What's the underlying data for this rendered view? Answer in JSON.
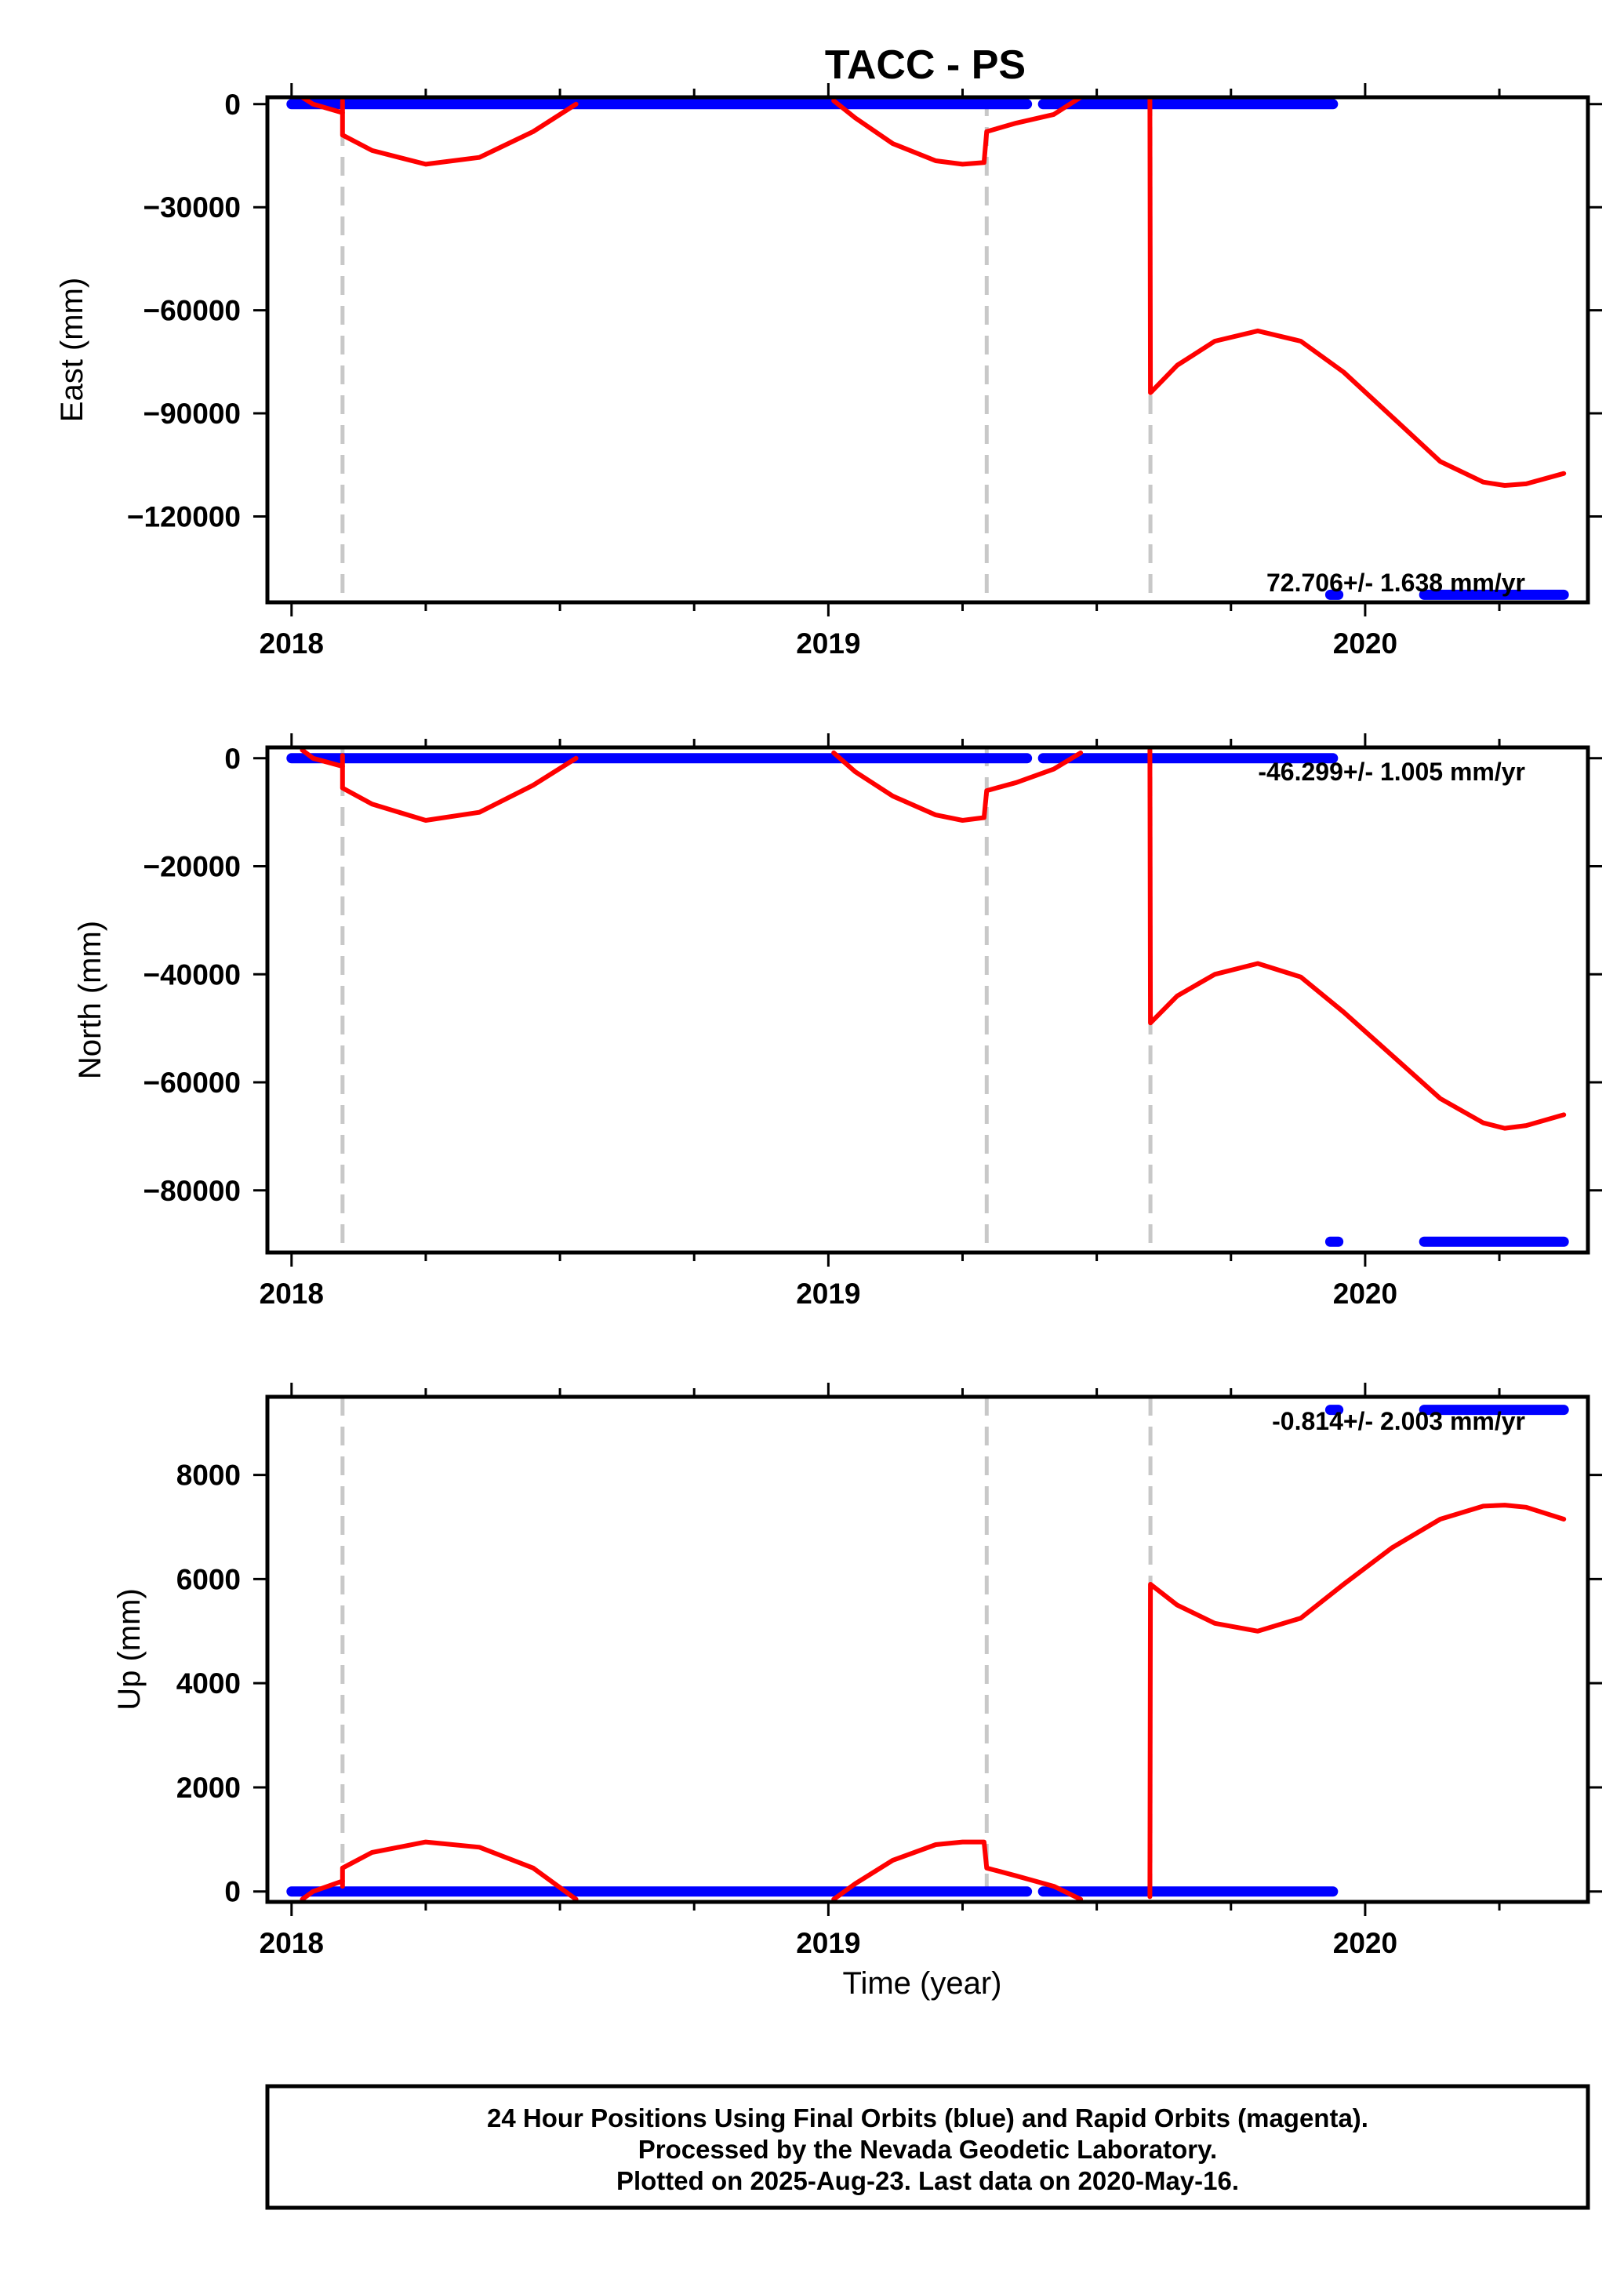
{
  "title": "TACC - PS",
  "xlabel": "Time (year)",
  "footer": [
    "24 Hour Positions Using Final Orbits (blue) and Rapid Orbits (magenta).",
    "Processed by the Nevada Geodetic Laboratory.",
    "Plotted on 2025-Aug-23. Last data on 2020-May-16."
  ],
  "colors": {
    "final_orbits": "#0000ff",
    "rapid_orbits_model": "#ff0000",
    "event_lines": "#c8c8c8",
    "frame": "#000000"
  },
  "chart_data": [
    {
      "type": "scatter",
      "name": "east",
      "ylabel": "East (mm)",
      "rate_label": "72.706+/- 1.638 mm/yr",
      "rate_position": "bottom-right",
      "xlim": [
        2017.955,
        2020.415
      ],
      "ylim": [
        -145000,
        2000
      ],
      "xticks": [
        2018,
        2019,
        2020
      ],
      "yticks": [
        0,
        -30000,
        -60000,
        -90000,
        -120000
      ],
      "grid": false,
      "event_lines_x": [
        2018.095,
        2019.295,
        2019.6
      ],
      "final_segments": [
        {
          "x_start": 2018.0,
          "x_end": 2019.37,
          "y": 0
        },
        {
          "x_start": 2019.4,
          "x_end": 2019.94,
          "y": 0
        },
        {
          "x_start": 2019.935,
          "x_end": 2019.95,
          "y": -142800
        },
        {
          "x_start": 2020.11,
          "x_end": 2020.37,
          "y": -142800
        }
      ],
      "model_segments": [
        {
          "points": [
            [
              2018.02,
              2000
            ],
            [
              2018.04,
              0
            ],
            [
              2018.0949,
              -2500
            ]
          ]
        },
        {
          "points": [
            [
              2018.0949,
              1000
            ],
            [
              2018.095,
              -9000
            ],
            [
              2018.15,
              -13500
            ],
            [
              2018.25,
              -17500
            ],
            [
              2018.35,
              -15500
            ],
            [
              2018.45,
              -8000
            ],
            [
              2018.53,
              0
            ]
          ]
        },
        {
          "points": [
            [
              2019.01,
              1000
            ],
            [
              2019.05,
              -4000
            ],
            [
              2019.12,
              -11500
            ],
            [
              2019.2,
              -16500
            ],
            [
              2019.25,
              -17500
            ],
            [
              2019.29,
              -17000
            ],
            [
              2019.295,
              -8000
            ],
            [
              2019.35,
              -5500
            ],
            [
              2019.42,
              -3000
            ],
            [
              2019.47,
              2000
            ]
          ]
        },
        {
          "points": [
            [
              2019.599,
              1500
            ],
            [
              2019.6,
              -84000
            ],
            [
              2019.65,
              -76000
            ],
            [
              2019.72,
              -69000
            ],
            [
              2019.8,
              -66000
            ],
            [
              2019.88,
              -69000
            ],
            [
              2019.96,
              -78000
            ],
            [
              2020.05,
              -91000
            ],
            [
              2020.14,
              -104000
            ],
            [
              2020.22,
              -110000
            ],
            [
              2020.26,
              -111000
            ],
            [
              2020.3,
              -110500
            ],
            [
              2020.37,
              -107500
            ]
          ]
        }
      ]
    },
    {
      "type": "scatter",
      "name": "north",
      "ylabel": "North (mm)",
      "rate_label": "-46.299+/- 1.005 mm/yr",
      "rate_position": "top-right",
      "xlim": [
        2017.955,
        2020.415
      ],
      "ylim": [
        -91500,
        2000
      ],
      "xticks": [
        2018,
        2019,
        2020
      ],
      "yticks": [
        0,
        -20000,
        -40000,
        -60000,
        -80000
      ],
      "grid": false,
      "event_lines_x": [
        2018.095,
        2019.295,
        2019.6
      ],
      "final_segments": [
        {
          "x_start": 2018.0,
          "x_end": 2019.37,
          "y": 0
        },
        {
          "x_start": 2019.4,
          "x_end": 2019.94,
          "y": 0
        },
        {
          "x_start": 2019.935,
          "x_end": 2019.95,
          "y": -89500
        },
        {
          "x_start": 2020.11,
          "x_end": 2020.37,
          "y": -89500
        }
      ],
      "model_segments": [
        {
          "points": [
            [
              2018.02,
              1500
            ],
            [
              2018.04,
              0
            ],
            [
              2018.0949,
              -1500
            ]
          ]
        },
        {
          "points": [
            [
              2018.0949,
              500
            ],
            [
              2018.095,
              -5500
            ],
            [
              2018.15,
              -8500
            ],
            [
              2018.25,
              -11500
            ],
            [
              2018.35,
              -10000
            ],
            [
              2018.45,
              -5000
            ],
            [
              2018.53,
              0
            ]
          ]
        },
        {
          "points": [
            [
              2019.01,
              1000
            ],
            [
              2019.05,
              -2500
            ],
            [
              2019.12,
              -7000
            ],
            [
              2019.2,
              -10500
            ],
            [
              2019.25,
              -11500
            ],
            [
              2019.29,
              -11000
            ],
            [
              2019.295,
              -6000
            ],
            [
              2019.35,
              -4500
            ],
            [
              2019.42,
              -2000
            ],
            [
              2019.47,
              1000
            ]
          ]
        },
        {
          "points": [
            [
              2019.599,
              1500
            ],
            [
              2019.6,
              -49000
            ],
            [
              2019.65,
              -44000
            ],
            [
              2019.72,
              -40000
            ],
            [
              2019.8,
              -38000
            ],
            [
              2019.88,
              -40500
            ],
            [
              2019.96,
              -47000
            ],
            [
              2020.05,
              -55000
            ],
            [
              2020.14,
              -63000
            ],
            [
              2020.22,
              -67500
            ],
            [
              2020.26,
              -68500
            ],
            [
              2020.3,
              -68000
            ],
            [
              2020.37,
              -66000
            ]
          ]
        }
      ]
    },
    {
      "type": "scatter",
      "name": "up",
      "ylabel": "Up (mm)",
      "rate_label": "-0.814+/- 2.003 mm/yr",
      "rate_position": "top-right",
      "xlim": [
        2017.955,
        2020.415
      ],
      "ylim": [
        -200,
        9500
      ],
      "xticks": [
        2018,
        2019,
        2020
      ],
      "yticks": [
        0,
        2000,
        4000,
        6000,
        8000
      ],
      "grid": false,
      "event_lines_x": [
        2018.095,
        2019.295,
        2019.6
      ],
      "final_segments": [
        {
          "x_start": 2018.0,
          "x_end": 2019.37,
          "y": 0
        },
        {
          "x_start": 2019.4,
          "x_end": 2019.94,
          "y": 0
        },
        {
          "x_start": 2019.935,
          "x_end": 2019.95,
          "y": 9250
        },
        {
          "x_start": 2020.11,
          "x_end": 2020.37,
          "y": 9250
        }
      ],
      "model_segments": [
        {
          "points": [
            [
              2018.02,
              -150
            ],
            [
              2018.04,
              0
            ],
            [
              2018.0949,
              200
            ]
          ]
        },
        {
          "points": [
            [
              2018.0949,
              100
            ],
            [
              2018.095,
              450
            ],
            [
              2018.15,
              750
            ],
            [
              2018.25,
              950
            ],
            [
              2018.35,
              850
            ],
            [
              2018.45,
              450
            ],
            [
              2018.53,
              -150
            ]
          ]
        },
        {
          "points": [
            [
              2019.01,
              -150
            ],
            [
              2019.05,
              150
            ],
            [
              2019.12,
              600
            ],
            [
              2019.2,
              900
            ],
            [
              2019.25,
              950
            ],
            [
              2019.29,
              950
            ],
            [
              2019.295,
              450
            ],
            [
              2019.35,
              300
            ],
            [
              2019.42,
              100
            ],
            [
              2019.47,
              -150
            ]
          ]
        },
        {
          "points": [
            [
              2019.599,
              -100
            ],
            [
              2019.6,
              5900
            ],
            [
              2019.65,
              5500
            ],
            [
              2019.72,
              5150
            ],
            [
              2019.8,
              5000
            ],
            [
              2019.88,
              5250
            ],
            [
              2019.96,
              5900
            ],
            [
              2020.05,
              6600
            ],
            [
              2020.14,
              7150
            ],
            [
              2020.22,
              7400
            ],
            [
              2020.26,
              7420
            ],
            [
              2020.3,
              7380
            ],
            [
              2020.37,
              7150
            ]
          ]
        }
      ]
    }
  ]
}
